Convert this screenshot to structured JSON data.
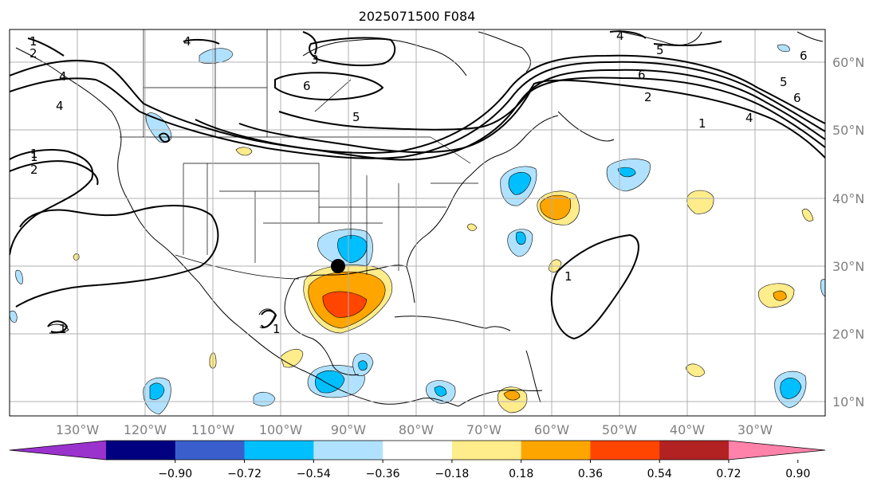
{
  "title": "2025071500 F084",
  "lon_ticks": [
    "130°W",
    "120°W",
    "110°W",
    "100°W",
    "90°W",
    "80°W",
    "70°W",
    "60°W",
    "50°W",
    "40°W",
    "30°W"
  ],
  "lat_ticks": [
    "60°N",
    "50°N",
    "40°N",
    "30°N",
    "20°N",
    "10°N"
  ],
  "colorbar": {
    "colors": [
      "#9a32cd",
      "#000080",
      "#3a5fcd",
      "#00bfff",
      "#b0e2ff",
      "#ffffff",
      "#ffec8b",
      "#ffa500",
      "#ff4500",
      "#b22222",
      "#ff82ab"
    ],
    "labels": [
      "−0.90",
      "−0.72",
      "−0.54",
      "−0.36",
      "−0.18",
      "0.18",
      "0.36",
      "0.54",
      "0.72",
      "0.90"
    ]
  },
  "contour_labels": [
    "1",
    "2",
    "4",
    "3",
    "4",
    "4",
    "1",
    "6",
    "5",
    "4",
    "5",
    "6",
    "6",
    "5",
    "6",
    "2",
    "1",
    "4",
    "1",
    "2",
    "1",
    "1",
    "1"
  ],
  "marker": {
    "label": "storm-center"
  }
}
